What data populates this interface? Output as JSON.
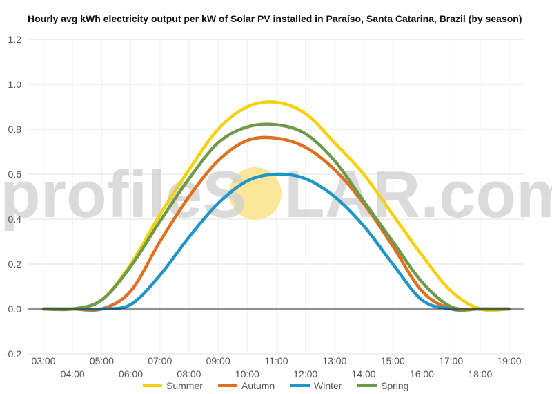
{
  "chart_data": {
    "type": "line",
    "title": "Hourly avg kWh electricity output per kW of Solar PV installed in Paraíso, Santa Catarina, Brazil (by season)",
    "xlabel": "",
    "ylabel": "",
    "x": [
      "03:00",
      "04:00",
      "05:00",
      "06:00",
      "07:00",
      "08:00",
      "09:00",
      "10:00",
      "11:00",
      "12:00",
      "13:00",
      "14:00",
      "15:00",
      "16:00",
      "17:00",
      "18:00",
      "19:00"
    ],
    "ylim": [
      -0.2,
      1.2
    ],
    "yticks": [
      -0.2,
      0.0,
      0.2,
      0.4,
      0.6,
      0.8,
      1.0,
      1.2
    ],
    "grid": true,
    "legend_position": "bottom",
    "series": [
      {
        "name": "Summer",
        "color": "#f5d10c",
        "values": [
          0.0,
          0.0,
          0.04,
          0.2,
          0.42,
          0.62,
          0.8,
          0.9,
          0.92,
          0.87,
          0.74,
          0.6,
          0.42,
          0.24,
          0.08,
          0.0,
          0.0
        ]
      },
      {
        "name": "Autumn",
        "color": "#e07020",
        "values": [
          0.0,
          0.0,
          0.0,
          0.08,
          0.3,
          0.5,
          0.66,
          0.75,
          0.76,
          0.72,
          0.62,
          0.47,
          0.28,
          0.08,
          0.0,
          0.0,
          0.0
        ]
      },
      {
        "name": "Winter",
        "color": "#1f96c8",
        "values": [
          0.0,
          0.0,
          0.0,
          0.02,
          0.15,
          0.32,
          0.47,
          0.57,
          0.6,
          0.58,
          0.5,
          0.37,
          0.2,
          0.04,
          0.0,
          0.0,
          0.0
        ]
      },
      {
        "name": "Spring",
        "color": "#6e9a4a",
        "values": [
          0.0,
          0.0,
          0.04,
          0.19,
          0.39,
          0.58,
          0.74,
          0.81,
          0.82,
          0.78,
          0.66,
          0.48,
          0.3,
          0.12,
          0.01,
          0.0,
          0.0
        ]
      }
    ]
  },
  "watermark": {
    "left": "profileS",
    "right": "LAR.com",
    "sun_color": "#fbe69a"
  }
}
